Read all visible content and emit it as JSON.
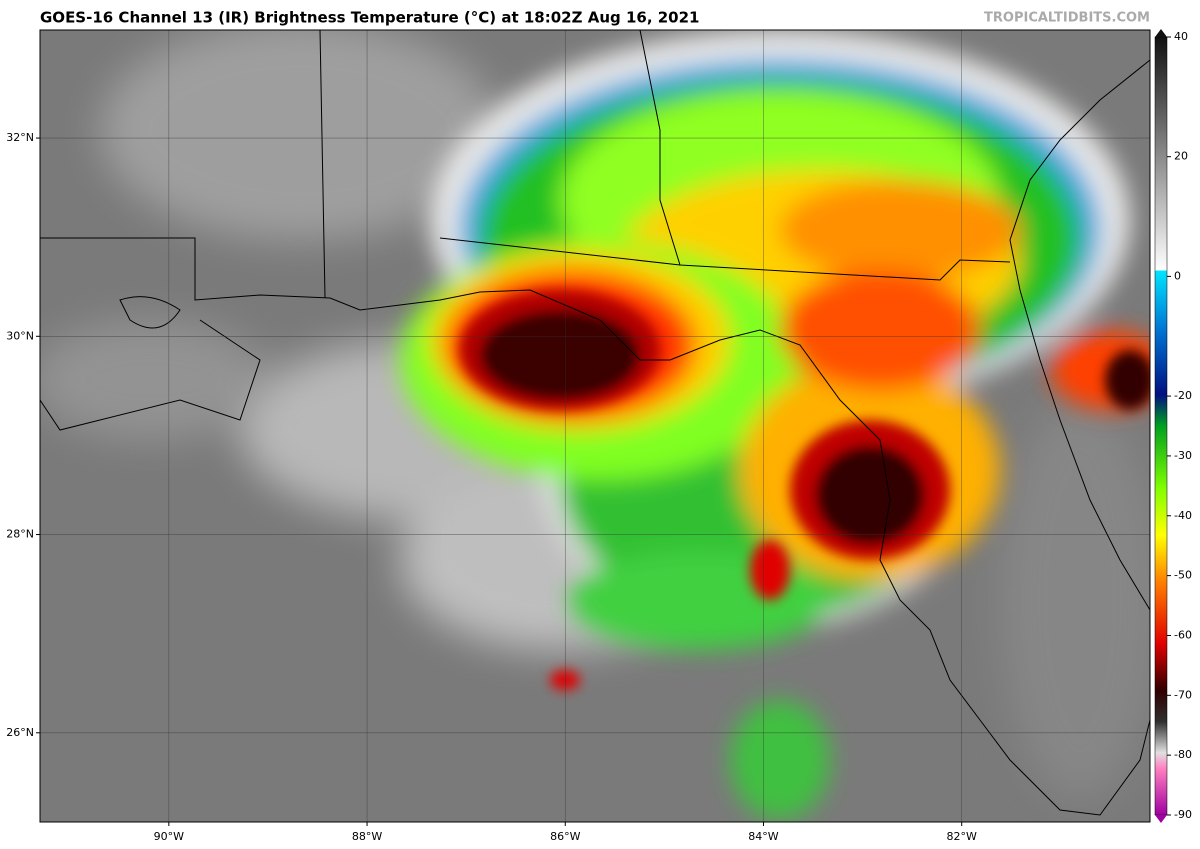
{
  "map": {
    "title": "GOES-16 Channel 13 (IR) Brightness Temperature (°C) at 18:02Z Aug 16, 2021",
    "credit": "TROPICALTIDBITS.COM",
    "xlim": [
      -91.3,
      -80.1
    ],
    "ylim": [
      25.1,
      33.09
    ],
    "lat_ticks": [
      {
        "value": 32,
        "label": "32°N"
      },
      {
        "value": 30,
        "label": "30°N"
      },
      {
        "value": 28,
        "label": "28°N"
      },
      {
        "value": 26,
        "label": "26°N"
      }
    ],
    "lon_ticks": [
      {
        "value": -90,
        "label": "90°W"
      },
      {
        "value": -88,
        "label": "88°W"
      },
      {
        "value": -86,
        "label": "86°W"
      },
      {
        "value": -84,
        "label": "84°W"
      },
      {
        "value": -82,
        "label": "82°W"
      }
    ],
    "colorbar": {
      "lim": [
        -90,
        40
      ],
      "ticks": [
        40,
        20,
        0,
        -20,
        -30,
        -40,
        -50,
        -60,
        -70,
        -80,
        -90
      ]
    }
  }
}
